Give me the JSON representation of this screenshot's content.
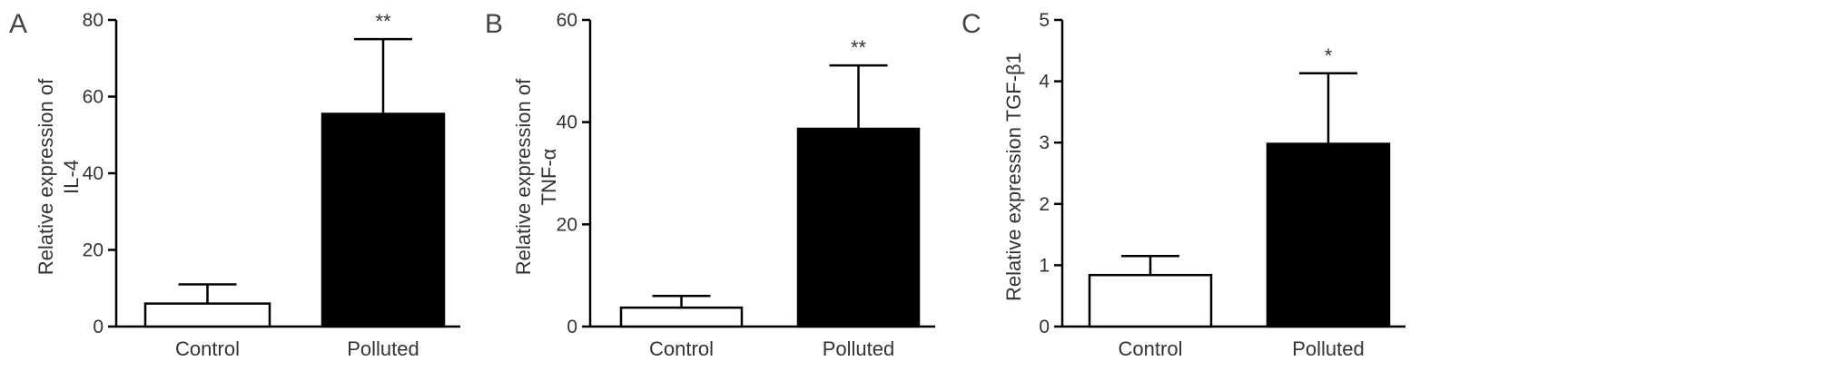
{
  "chart_data": [
    {
      "type": "bar",
      "panel": "A",
      "ylabel": [
        "Relative expression of",
        "IL-4"
      ],
      "categories": [
        "Control",
        "Polluted"
      ],
      "values": [
        6,
        55.5
      ],
      "errors": [
        5,
        19.5
      ],
      "significance": [
        "",
        "**"
      ],
      "ylim": [
        0,
        80
      ],
      "yticks": [
        0,
        20,
        40,
        60,
        80
      ],
      "fills": [
        "#ffffff",
        "#000000"
      ]
    },
    {
      "type": "bar",
      "panel": "B",
      "ylabel": [
        "Relative expression of",
        "TNF-α"
      ],
      "categories": [
        "Control",
        "Polluted"
      ],
      "values": [
        3.7,
        38.7
      ],
      "errors": [
        2.3,
        12.4
      ],
      "significance": [
        "",
        "**"
      ],
      "ylim": [
        0,
        60
      ],
      "yticks": [
        0,
        20,
        40,
        60
      ],
      "fills": [
        "#ffffff",
        "#000000"
      ]
    },
    {
      "type": "bar",
      "panel": "C",
      "ylabel": [
        "Relative expression TGF-β1"
      ],
      "categories": [
        "Control",
        "Polluted"
      ],
      "values": [
        0.84,
        2.98
      ],
      "errors": [
        0.31,
        1.15
      ],
      "significance": [
        "",
        "*"
      ],
      "ylim": [
        0,
        5
      ],
      "yticks": [
        0,
        1,
        2,
        3,
        4,
        5
      ],
      "fills": [
        "#ffffff",
        "#000000"
      ]
    }
  ]
}
